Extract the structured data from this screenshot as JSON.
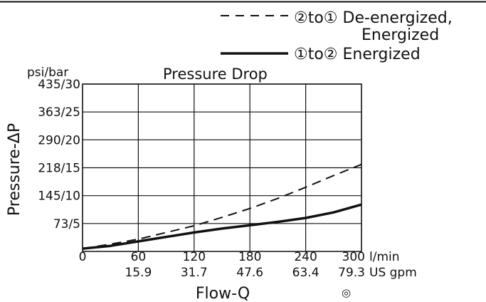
{
  "chart_data": {
    "type": "line",
    "title": "Pressure Drop",
    "xlabel": "Flow-Q",
    "ylabel": "Pressure-ΔP",
    "y_unit_label": "psi/bar",
    "x_unit_label": "l/min",
    "x2_unit_label": "US gpm",
    "xlim": [
      0,
      300
    ],
    "ylim": [
      0,
      30
    ],
    "grid": true,
    "legend_position": "top-right",
    "x_ticks": [
      {
        "value": 0,
        "label": "0",
        "label2": ""
      },
      {
        "value": 60,
        "label": "60",
        "label2": "15.9"
      },
      {
        "value": 120,
        "label": "120",
        "label2": "31.7"
      },
      {
        "value": 180,
        "label": "180",
        "label2": "47.6"
      },
      {
        "value": 240,
        "label": "240",
        "label2": "63.4"
      },
      {
        "value": 300,
        "label": "300",
        "label2": "79.3"
      }
    ],
    "y_ticks": [
      {
        "value": 5,
        "label": "73/5"
      },
      {
        "value": 10,
        "label": "145/10"
      },
      {
        "value": 15,
        "label": "218/15"
      },
      {
        "value": 20,
        "label": "290/20"
      },
      {
        "value": 25,
        "label": "363/25"
      },
      {
        "value": 30,
        "label": "435/30"
      }
    ],
    "series": [
      {
        "name": "②to① De-energized, Energized",
        "legend_lines": [
          "②to① De-energized,",
          "Energized"
        ],
        "style": "dashed",
        "x": [
          0,
          30,
          60,
          90,
          120,
          150,
          180,
          210,
          240,
          270,
          300
        ],
        "y": [
          0.5,
          1.3,
          2.2,
          3.4,
          4.6,
          6.1,
          7.7,
          9.5,
          11.5,
          13.6,
          15.6
        ]
      },
      {
        "name": "①to② Energized",
        "legend_lines": [
          "①to② Energized"
        ],
        "style": "solid",
        "x": [
          0,
          30,
          60,
          90,
          120,
          150,
          180,
          210,
          240,
          270,
          300
        ],
        "y": [
          0.5,
          1.0,
          1.8,
          2.6,
          3.4,
          4.1,
          4.7,
          5.3,
          6.0,
          7.0,
          8.4
        ]
      }
    ],
    "symbol": "◎"
  }
}
